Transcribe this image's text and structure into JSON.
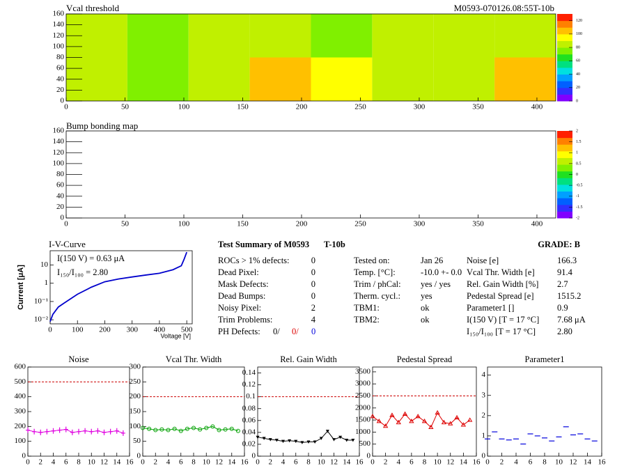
{
  "header": {
    "id": "M0593-070126.08:55T-10b"
  },
  "chart_data": [
    {
      "type": "heatmap",
      "title": "Vcal threshold",
      "xlim": [
        0,
        416
      ],
      "xticks": [
        0,
        50,
        100,
        150,
        200,
        250,
        300,
        350,
        400
      ],
      "ylim": [
        0,
        160
      ],
      "yticks": [
        0,
        20,
        40,
        60,
        80,
        100,
        120,
        140,
        160
      ],
      "zlim": [
        0,
        130
      ],
      "zticks": [
        0,
        20,
        40,
        60,
        80,
        100,
        120
      ],
      "colorscale": [
        "#8000ff",
        "#3030ff",
        "#0060ff",
        "#00a0ff",
        "#00e0e0",
        "#00e080",
        "#20e020",
        "#80f000",
        "#c0f000",
        "#ffff00",
        "#ffc000",
        "#ff8000",
        "#ff2000"
      ],
      "values": [
        [
          88,
          70,
          88,
          108,
          98,
          88,
          82,
          102
        ],
        [
          82,
          78,
          88,
          80,
          78,
          80,
          80,
          82
        ]
      ]
    },
    {
      "type": "heatmap",
      "title": "Bump bonding map",
      "xlim": [
        0,
        416
      ],
      "xticks": [
        0,
        50,
        100,
        150,
        200,
        250,
        300,
        350,
        400
      ],
      "ylim": [
        0,
        160
      ],
      "yticks": [
        0,
        20,
        40,
        60,
        80,
        100,
        120,
        140,
        160
      ],
      "zlim": [
        -2,
        2
      ],
      "zticks": [
        -2,
        -1.5,
        -1,
        -0.5,
        0,
        0.5,
        1,
        1.5,
        2
      ],
      "colorscale": [
        "#8000ff",
        "#3030ff",
        "#0060ff",
        "#00a0ff",
        "#00e0e0",
        "#00e080",
        "#20e020",
        "#80f000",
        "#c0f000",
        "#ffff00",
        "#ffc000",
        "#ff8000",
        "#ff2000"
      ],
      "values": []
    },
    {
      "type": "line",
      "title": "I-V-Curve",
      "xlabel": "Voltage [V]",
      "ylabel": "Current [μA]",
      "log_y": true,
      "color": "#0000cc",
      "x": [
        0,
        10,
        30,
        50,
        100,
        150,
        200,
        250,
        300,
        350,
        400,
        450,
        480,
        490,
        500
      ],
      "values": [
        0.008,
        0.02,
        0.05,
        0.08,
        0.25,
        0.6,
        1.2,
        1.7,
        2.2,
        2.8,
        3.5,
        5.5,
        9,
        20,
        50
      ],
      "xlim": [
        0,
        520
      ],
      "xticks": [
        0,
        100,
        200,
        300,
        400,
        500
      ],
      "ylim": [
        0.006,
        60
      ],
      "yticks": [
        {
          "value": 0.01,
          "label": "10⁻²"
        },
        {
          "value": 0.1,
          "label": "10⁻¹"
        },
        {
          "value": 1,
          "label": "1"
        },
        {
          "value": 10,
          "label": "10"
        }
      ],
      "annotations": [
        "I(150 V) = 0.63 μA",
        "I₁₅₀/I₁₀₀ =  2.80"
      ]
    },
    {
      "type": "roc",
      "title": "Noise",
      "marker": "plus",
      "color": "#e000e0",
      "connect": true,
      "x": [
        0,
        1,
        2,
        3,
        4,
        5,
        6,
        7,
        8,
        9,
        10,
        11,
        12,
        13,
        14,
        15
      ],
      "values": [
        175,
        165,
        160,
        165,
        170,
        175,
        180,
        160,
        165,
        170,
        165,
        170,
        160,
        165,
        170,
        155
      ],
      "reference": 500,
      "reference_color": "#cc0000",
      "xlim": [
        0,
        16
      ],
      "xticks": [
        0,
        2,
        4,
        6,
        8,
        10,
        12,
        14,
        16
      ],
      "ylim": [
        0,
        600
      ],
      "yticks": [
        0,
        100,
        200,
        300,
        400,
        500,
        600
      ]
    },
    {
      "type": "roc",
      "title": "Vcal Thr. Width",
      "marker": "circle",
      "color": "#00a000",
      "connect": true,
      "x": [
        0,
        1,
        2,
        3,
        4,
        5,
        6,
        7,
        8,
        9,
        10,
        11,
        12,
        13,
        14,
        15
      ],
      "values": [
        95,
        92,
        88,
        90,
        88,
        92,
        85,
        92,
        95,
        90,
        95,
        100,
        88,
        90,
        92,
        85
      ],
      "reference": 200,
      "reference_color": "#cc0000",
      "xlim": [
        0,
        16
      ],
      "xticks": [
        0,
        2,
        4,
        6,
        8,
        10,
        12,
        14,
        16
      ],
      "ylim": [
        0,
        300
      ],
      "yticks": [
        0,
        50,
        100,
        150,
        200,
        250,
        300
      ]
    },
    {
      "type": "roc",
      "title": "Rel. Gain Width",
      "marker": "triangle-down",
      "color": "#000000",
      "connect": true,
      "x": [
        0,
        1,
        2,
        3,
        4,
        5,
        6,
        7,
        8,
        9,
        10,
        11,
        12,
        13,
        14,
        15
      ],
      "values": [
        0.032,
        0.03,
        0.028,
        0.027,
        0.025,
        0.026,
        0.025,
        0.023,
        0.024,
        0.024,
        0.03,
        0.042,
        0.028,
        0.032,
        0.027,
        0.027
      ],
      "reference": 0.1,
      "reference_color": "#cc0000",
      "xlim": [
        0,
        16
      ],
      "xticks": [
        0,
        2,
        4,
        6,
        8,
        10,
        12,
        14,
        16
      ],
      "ylim": [
        0,
        0.15
      ],
      "yticks": [
        0,
        0.02,
        0.04,
        0.06,
        0.08,
        0.1,
        0.12,
        0.14
      ]
    },
    {
      "type": "roc",
      "title": "Pedestal Spread",
      "marker": "triangle-up",
      "color": "#dd0000",
      "connect": true,
      "x": [
        0,
        1,
        2,
        3,
        4,
        5,
        6,
        7,
        8,
        9,
        10,
        11,
        12,
        13,
        14,
        15
      ],
      "values": [
        1650,
        1450,
        1250,
        1700,
        1400,
        1750,
        1450,
        1650,
        1450,
        1200,
        1800,
        1400,
        1350,
        1600,
        1300,
        1500
      ],
      "reference": 2500,
      "reference_color": "#cc0000",
      "xlim": [
        0,
        16
      ],
      "xticks": [
        0,
        2,
        4,
        6,
        8,
        10,
        12,
        14,
        16
      ],
      "ylim": [
        0,
        3700
      ],
      "yticks": [
        0,
        500,
        1000,
        1500,
        2000,
        2500,
        3000,
        3500
      ]
    },
    {
      "type": "roc",
      "title": "Parameter1",
      "marker": "hbar",
      "color": "#0000dd",
      "connect": false,
      "x": [
        0,
        1,
        2,
        3,
        4,
        5,
        6,
        7,
        8,
        9,
        10,
        11,
        12,
        13,
        14,
        15
      ],
      "values": [
        0.85,
        1.2,
        0.85,
        0.8,
        0.85,
        0.6,
        1.1,
        1.0,
        0.9,
        0.75,
        0.95,
        1.45,
        1.05,
        1.1,
        0.85,
        0.75
      ],
      "xlim": [
        0,
        16
      ],
      "xticks": [
        0,
        2,
        4,
        6,
        8,
        10,
        12,
        14,
        16
      ],
      "ylim": [
        0,
        4.4
      ],
      "yticks": [
        0,
        1,
        2,
        3,
        4
      ]
    }
  ],
  "summary": {
    "title": "Test Summary of M0593",
    "module": "T-10b",
    "grade": "GRADE:  B",
    "left": [
      [
        "ROCs > 1% defects:",
        "0"
      ],
      [
        "Dead Pixel:",
        "0"
      ],
      [
        "Mask Defects:",
        "0"
      ],
      [
        "Dead Bumps:",
        "0"
      ],
      [
        "Noisy Pixel:",
        "2"
      ],
      [
        "Trim Problems:",
        "4"
      ]
    ],
    "ph": {
      "label": "PH Defects:",
      "values": [
        "0/",
        "0/",
        "0"
      ]
    },
    "middle": [
      [
        "Tested on:",
        "Jan 26"
      ],
      [
        "Temp. [°C]:",
        "-10.0 +- 0.0"
      ],
      [
        "Trim / phCal:",
        "yes / yes"
      ],
      [
        "Therm. cycl.:",
        "yes"
      ],
      [
        "TBM1:",
        "ok"
      ],
      [
        "TBM2:",
        "ok"
      ]
    ],
    "right": [
      [
        "Noise [e]",
        "166.3"
      ],
      [
        "Vcal Thr. Width [e]",
        "91.4"
      ],
      [
        "Rel. Gain Width [%]",
        "2.7"
      ],
      [
        "Pedestal Spread [e]",
        "1515.2"
      ],
      [
        "Parameter1 []",
        "0.9"
      ],
      [
        "I(150 V) [T = 17 °C]",
        "7.68 μA"
      ],
      [
        "I₁₅₀/I₁₀₀  [T = 17 °C]",
        "2.80"
      ]
    ]
  }
}
